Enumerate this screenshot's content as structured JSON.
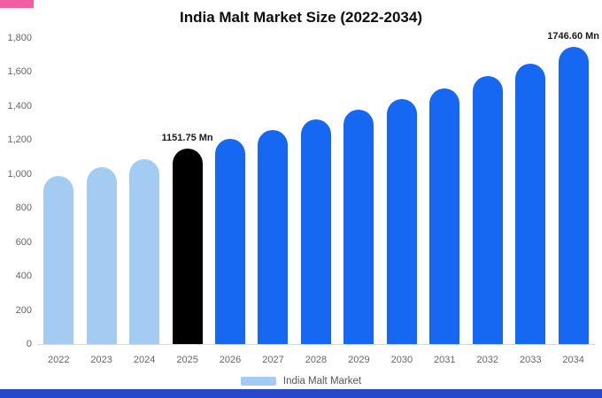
{
  "page": {
    "top_left_accent_color": "#ef5fa2",
    "bottom_bar_color": "#2947c9"
  },
  "chart_data": {
    "type": "bar",
    "title": "India Malt Market Size (2022-2034)",
    "categories": [
      "2022",
      "2023",
      "2024",
      "2025",
      "2026",
      "2027",
      "2028",
      "2029",
      "2030",
      "2031",
      "2032",
      "2033",
      "2034"
    ],
    "values": [
      990,
      1040,
      1085,
      1151.75,
      1205,
      1260,
      1320,
      1380,
      1440,
      1505,
      1575,
      1650,
      1746.6
    ],
    "unit": "Mn",
    "bar_types": [
      "historical",
      "historical",
      "historical",
      "highlight",
      "forecast",
      "forecast",
      "forecast",
      "forecast",
      "forecast",
      "forecast",
      "forecast",
      "forecast",
      "forecast"
    ],
    "palette": {
      "historical": "#a4ccf3",
      "highlight": "#000000",
      "forecast": "#1667f2"
    },
    "ylim": [
      0,
      1800
    ],
    "yticks": [
      0,
      200,
      400,
      600,
      800,
      1000,
      1200,
      1400,
      1600,
      1800
    ],
    "ytick_labels": [
      "0",
      "200",
      "400",
      "600",
      "800",
      "1,000",
      "1,200",
      "1,400",
      "1,600",
      "1,800"
    ],
    "annotations": [
      {
        "category": "2025",
        "text": "1151.75 Mn"
      },
      {
        "category": "2034",
        "text": "1746.60 Mn"
      }
    ],
    "legend": [
      {
        "label": "India Malt Market",
        "color": "#a4ccf3"
      }
    ],
    "grid": false,
    "legend_position": "bottom-center"
  }
}
